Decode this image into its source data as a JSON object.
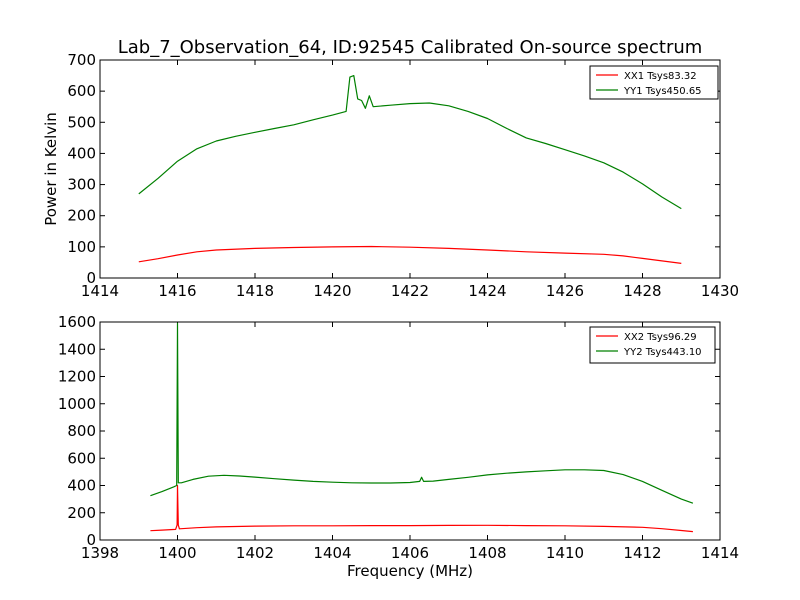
{
  "chart_data": [
    {
      "type": "line",
      "title": "Lab_7_Observation_64, ID:92545 Calibrated On-source spectrum",
      "xlabel": "",
      "ylabel": "Power in Kelvin",
      "xlim": [
        1414,
        1430
      ],
      "ylim": [
        0,
        700
      ],
      "x_ticks": [
        1414,
        1416,
        1418,
        1420,
        1422,
        1424,
        1426,
        1428,
        1430
      ],
      "y_ticks": [
        0,
        100,
        200,
        300,
        400,
        500,
        600,
        700
      ],
      "legend_position": "top-right",
      "grid": false,
      "series": [
        {
          "name": "XX1 Tsys83.32",
          "color": "#ff0000",
          "x": [
            1415,
            1415.5,
            1416,
            1416.5,
            1417,
            1418,
            1419,
            1420,
            1421,
            1422,
            1423,
            1424,
            1425,
            1426,
            1427,
            1427.5,
            1428,
            1428.5,
            1429
          ],
          "y": [
            52,
            62,
            74,
            84,
            90,
            95,
            98,
            100,
            101,
            99,
            95,
            90,
            84,
            80,
            76,
            71,
            63,
            55,
            47
          ]
        },
        {
          "name": "YY1 Tsys450.65",
          "color": "#008000",
          "x": [
            1415,
            1415.5,
            1416,
            1416.5,
            1417,
            1417.5,
            1418,
            1418.5,
            1419,
            1419.5,
            1420,
            1420.35,
            1420.45,
            1420.55,
            1420.65,
            1420.75,
            1420.85,
            1420.95,
            1421.05,
            1421.5,
            1422,
            1422.5,
            1423,
            1423.5,
            1424,
            1424.5,
            1425,
            1425.5,
            1426,
            1426.5,
            1427,
            1427.5,
            1428,
            1428.5,
            1429
          ],
          "y": [
            270,
            320,
            375,
            415,
            440,
            455,
            468,
            480,
            492,
            508,
            523,
            535,
            645,
            650,
            575,
            570,
            545,
            585,
            550,
            555,
            560,
            562,
            553,
            535,
            512,
            480,
            450,
            432,
            412,
            392,
            370,
            340,
            302,
            260,
            223
          ]
        }
      ]
    },
    {
      "type": "line",
      "title": "",
      "xlabel": "Frequency (MHz)",
      "ylabel": "",
      "xlim": [
        1398,
        1414
      ],
      "ylim": [
        0,
        1600
      ],
      "x_ticks": [
        1398,
        1400,
        1402,
        1404,
        1406,
        1408,
        1410,
        1412,
        1414
      ],
      "y_ticks": [
        0,
        200,
        400,
        600,
        800,
        1000,
        1200,
        1400,
        1600
      ],
      "legend_position": "top-right",
      "grid": false,
      "series": [
        {
          "name": "XX2 Tsys96.29",
          "color": "#ff0000",
          "x": [
            1399.3,
            1399.6,
            1399.95,
            1399.99,
            1400.0,
            1400.02,
            1400.05,
            1400.5,
            1401,
            1402,
            1403,
            1404,
            1405,
            1406,
            1407,
            1408,
            1409,
            1410,
            1411,
            1412,
            1412.5,
            1413,
            1413.3
          ],
          "y": [
            68,
            73,
            78,
            110,
            400,
            110,
            82,
            90,
            96,
            102,
            104,
            104,
            106,
            106,
            107,
            108,
            106,
            104,
            100,
            93,
            83,
            70,
            62
          ]
        },
        {
          "name": "YY2 Tsys443.10",
          "color": "#008000",
          "x": [
            1399.3,
            1399.6,
            1399.9,
            1399.98,
            1400.0,
            1400.02,
            1400.1,
            1400.4,
            1400.8,
            1401.2,
            1401.6,
            1402,
            1402.5,
            1403,
            1403.5,
            1404,
            1404.5,
            1405,
            1405.5,
            1406,
            1406.25,
            1406.3,
            1406.35,
            1406.6,
            1407,
            1407.5,
            1408,
            1408.5,
            1409,
            1409.5,
            1410,
            1410.5,
            1411,
            1411.5,
            1412,
            1412.5,
            1413,
            1413.3
          ],
          "y": [
            325,
            355,
            390,
            400,
            1590,
            420,
            420,
            445,
            468,
            475,
            470,
            462,
            450,
            440,
            430,
            424,
            420,
            418,
            418,
            422,
            430,
            460,
            430,
            432,
            445,
            460,
            478,
            490,
            500,
            508,
            515,
            515,
            510,
            480,
            430,
            365,
            300,
            270
          ]
        }
      ]
    }
  ]
}
